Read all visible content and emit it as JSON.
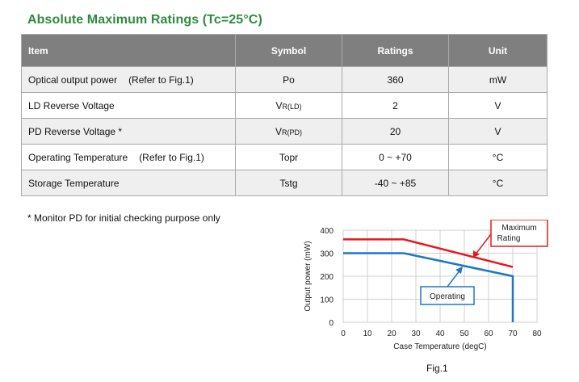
{
  "title": "Absolute Maximum Ratings (Tc=25°C)",
  "table": {
    "headers": [
      "Item",
      "Symbol",
      "Ratings",
      "Unit"
    ],
    "rows": [
      {
        "item": "Optical output power",
        "ref": "(Refer to Fig.1)",
        "symbol": "Po",
        "symbol_sub": "",
        "rating": "360",
        "unit": "mW"
      },
      {
        "item": "LD Reverse Voltage",
        "ref": "",
        "symbol": "V",
        "symbol_sub": "R(LD)",
        "rating": "2",
        "unit": "V"
      },
      {
        "item": "PD Reverse Voltage *",
        "ref": "",
        "symbol": "V",
        "symbol_sub": "R(PD)",
        "rating": "20",
        "unit": "V"
      },
      {
        "item": "Operating Temperature",
        "ref": "(Refer to Fig.1)",
        "symbol": "Topr",
        "symbol_sub": "",
        "rating": "0 ~ +70",
        "unit": "°C"
      },
      {
        "item": "Storage Temperature",
        "ref": "",
        "symbol": "Tstg",
        "symbol_sub": "",
        "rating": "-40 ~ +85",
        "unit": "°C"
      }
    ]
  },
  "note": "* Monitor PD for initial checking purpose only",
  "fig_caption": "Fig.1",
  "chart_data": {
    "type": "line",
    "xlabel": "Case Temperature (degC)",
    "ylabel": "Output power (mW)",
    "xlim": [
      0,
      80
    ],
    "ylim": [
      0,
      400
    ],
    "xticks": [
      0,
      10,
      20,
      30,
      40,
      50,
      60,
      70,
      80
    ],
    "yticks": [
      0,
      100,
      200,
      300,
      400
    ],
    "grid": true,
    "series": [
      {
        "name": "Maximum Rating",
        "color": "#e41a1c",
        "x": [
          0,
          25,
          70
        ],
        "y": [
          360,
          360,
          240
        ]
      },
      {
        "name": "Operating",
        "color": "#1f77c4",
        "x": [
          0,
          25,
          70,
          70
        ],
        "y": [
          300,
          300,
          200,
          0
        ]
      }
    ]
  }
}
